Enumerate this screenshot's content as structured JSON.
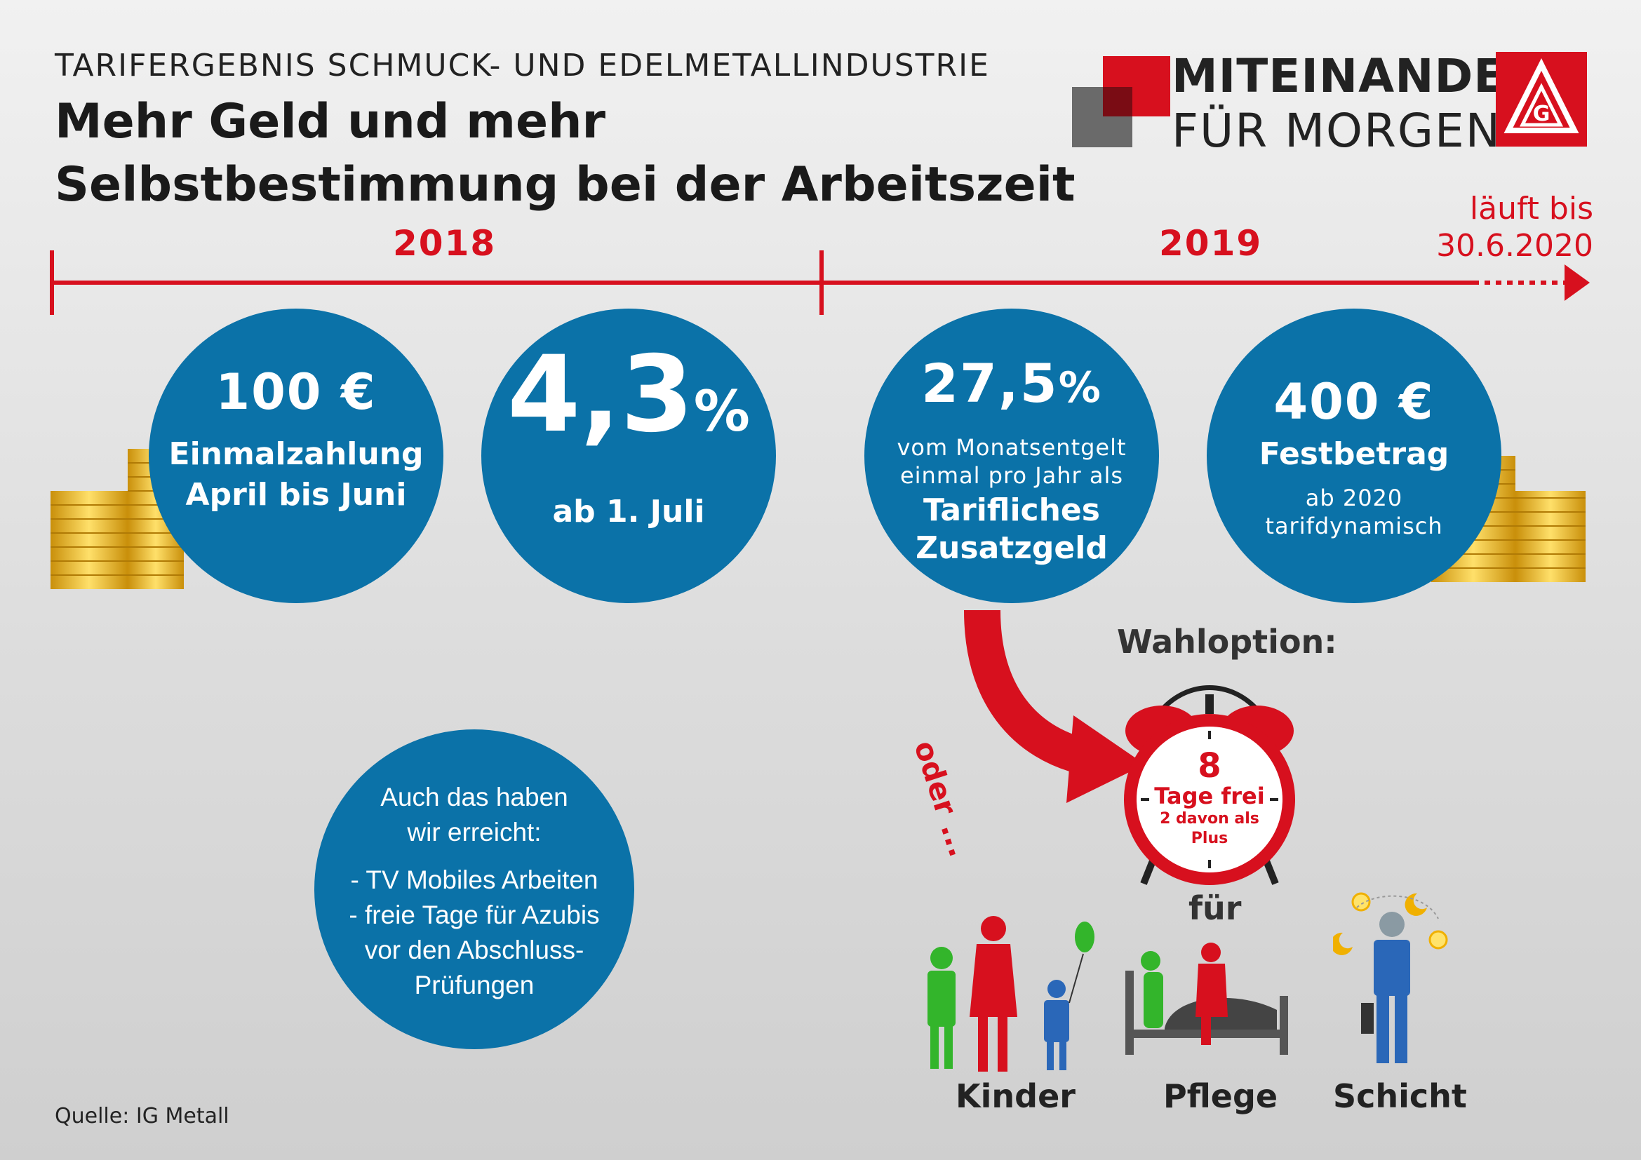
{
  "header": {
    "supertitle": "TARIFERGEBNIS SCHMUCK- UND EDELMETALLINDUSTRIE",
    "title_line1": "Mehr Geld und mehr",
    "title_line2": "Selbstbestimmung bei der Arbeitszeit"
  },
  "logo": {
    "line1": "MITEINANDER",
    "line2": "FÜR MORGEN",
    "brand_color": "#d7101e"
  },
  "timeline": {
    "year1": "2018",
    "year2": "2019",
    "until_line1": "läuft bis",
    "until_line2": "30.6.2020"
  },
  "circles": {
    "c1": {
      "value": "100 €",
      "line1": "Einmalzahlung",
      "line2": "April bis Juni"
    },
    "c2": {
      "value": "4,3",
      "unit": "%",
      "line1": "ab 1. Juli"
    },
    "c3": {
      "value": "27,5",
      "unit": "%",
      "line1": "vom Monatsentgelt",
      "line2": "einmal pro Jahr als",
      "line3": "Tarifliches",
      "line4": "Zusatzgeld"
    },
    "c4": {
      "value": "400 €",
      "line1": "Festbetrag",
      "line2": "ab 2020",
      "line3": "tarifdynamisch"
    }
  },
  "option": {
    "title": "Wahloption:",
    "oder": "oder ...",
    "clock_number": "8",
    "clock_line1": "Tage frei",
    "clock_line2": "2 davon als",
    "clock_line3": "Plus",
    "fuer": "für",
    "kinder": "Kinder",
    "pflege": "Pflege",
    "schicht": "Schicht"
  },
  "info_circle": {
    "line1": "Auch das haben",
    "line2": "wir erreicht:",
    "item1": "- TV Mobiles Arbeiten",
    "item2": "- freie Tage für Azubis",
    "item3": "vor den Abschluss-",
    "item4": "Prüfungen"
  },
  "footer": {
    "source": "Quelle: IG Metall"
  },
  "colors": {
    "blue": "#0b72a8",
    "red": "#d7101e",
    "gold": "#e8b818"
  }
}
